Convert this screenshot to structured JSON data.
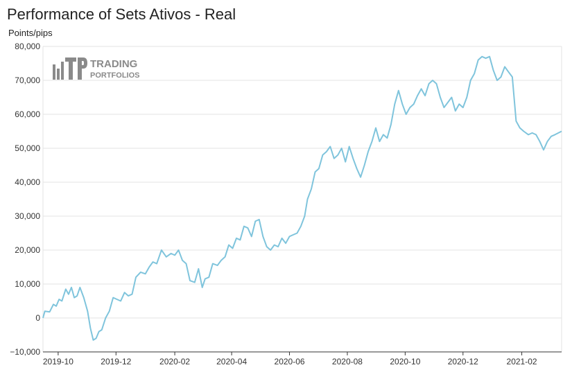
{
  "chart_data": {
    "type": "line",
    "title": "Performance of Sets Ativos - Real",
    "ylabel": "Points/pips",
    "xlabel": "",
    "ylim": [
      -10000,
      80000
    ],
    "xlim": [
      "2019-09-15",
      "2021-03-15"
    ],
    "grid": "horizontal",
    "legend": "none",
    "line_color": "#7fc4dc",
    "y_ticks": [
      {
        "value": -10000,
        "label": "−10,000"
      },
      {
        "value": 0,
        "label": "0"
      },
      {
        "value": 10000,
        "label": "10,000"
      },
      {
        "value": 20000,
        "label": "20,000"
      },
      {
        "value": 30000,
        "label": "30,000"
      },
      {
        "value": 40000,
        "label": "40,000"
      },
      {
        "value": 50000,
        "label": "50,000"
      },
      {
        "value": 60000,
        "label": "60,000"
      },
      {
        "value": 70000,
        "label": "70,000"
      },
      {
        "value": 80000,
        "label": "80,000"
      }
    ],
    "x_ticks": [
      {
        "date": "2019-10-01",
        "label": "2019-10"
      },
      {
        "date": "2019-12-01",
        "label": "2019-12"
      },
      {
        "date": "2020-02-01",
        "label": "2020-02"
      },
      {
        "date": "2020-04-01",
        "label": "2020-04"
      },
      {
        "date": "2020-06-01",
        "label": "2020-06"
      },
      {
        "date": "2020-08-01",
        "label": "2020-08"
      },
      {
        "date": "2020-10-01",
        "label": "2020-10"
      },
      {
        "date": "2020-12-01",
        "label": "2020-12"
      },
      {
        "date": "2021-02-01",
        "label": "2021-02"
      }
    ],
    "series": [
      {
        "points": [
          [
            "2019-09-15",
            0
          ],
          [
            "2019-09-17",
            2000
          ],
          [
            "2019-09-22",
            1800
          ],
          [
            "2019-09-26",
            4000
          ],
          [
            "2019-09-29",
            3500
          ],
          [
            "2019-10-02",
            5500
          ],
          [
            "2019-10-05",
            5000
          ],
          [
            "2019-10-09",
            8500
          ],
          [
            "2019-10-12",
            7000
          ],
          [
            "2019-10-15",
            9000
          ],
          [
            "2019-10-18",
            6000
          ],
          [
            "2019-10-21",
            6500
          ],
          [
            "2019-10-24",
            9000
          ],
          [
            "2019-10-28",
            6000
          ],
          [
            "2019-11-01",
            2000
          ],
          [
            "2019-11-04",
            -3000
          ],
          [
            "2019-11-07",
            -6500
          ],
          [
            "2019-11-10",
            -6000
          ],
          [
            "2019-11-13",
            -4000
          ],
          [
            "2019-11-16",
            -3500
          ],
          [
            "2019-11-20",
            0
          ],
          [
            "2019-11-24",
            2000
          ],
          [
            "2019-11-28",
            6000
          ],
          [
            "2019-12-02",
            5500
          ],
          [
            "2019-12-06",
            5000
          ],
          [
            "2019-12-10",
            7500
          ],
          [
            "2019-12-14",
            6500
          ],
          [
            "2019-12-18",
            7000
          ],
          [
            "2019-12-22",
            12000
          ],
          [
            "2019-12-27",
            13500
          ],
          [
            "2020-01-01",
            13000
          ],
          [
            "2020-01-05",
            15000
          ],
          [
            "2020-01-09",
            16500
          ],
          [
            "2020-01-13",
            16000
          ],
          [
            "2020-01-18",
            20000
          ],
          [
            "2020-01-23",
            18000
          ],
          [
            "2020-01-28",
            19000
          ],
          [
            "2020-02-01",
            18500
          ],
          [
            "2020-02-05",
            20000
          ],
          [
            "2020-02-09",
            17000
          ],
          [
            "2020-02-13",
            16000
          ],
          [
            "2020-02-17",
            11000
          ],
          [
            "2020-02-22",
            10500
          ],
          [
            "2020-02-26",
            14500
          ],
          [
            "2020-03-01",
            9000
          ],
          [
            "2020-03-04",
            11500
          ],
          [
            "2020-03-08",
            12000
          ],
          [
            "2020-03-12",
            16000
          ],
          [
            "2020-03-17",
            15500
          ],
          [
            "2020-03-21",
            17000
          ],
          [
            "2020-03-25",
            18000
          ],
          [
            "2020-03-29",
            21500
          ],
          [
            "2020-04-02",
            20500
          ],
          [
            "2020-04-06",
            23500
          ],
          [
            "2020-04-10",
            23000
          ],
          [
            "2020-04-14",
            27000
          ],
          [
            "2020-04-18",
            26500
          ],
          [
            "2020-04-22",
            24000
          ],
          [
            "2020-04-26",
            28500
          ],
          [
            "2020-04-30",
            29000
          ],
          [
            "2020-05-04",
            24000
          ],
          [
            "2020-05-08",
            21000
          ],
          [
            "2020-05-12",
            20000
          ],
          [
            "2020-05-16",
            21500
          ],
          [
            "2020-05-20",
            21000
          ],
          [
            "2020-05-24",
            23500
          ],
          [
            "2020-05-28",
            22000
          ],
          [
            "2020-06-01",
            24000
          ],
          [
            "2020-06-05",
            24500
          ],
          [
            "2020-06-09",
            25000
          ],
          [
            "2020-06-13",
            27000
          ],
          [
            "2020-06-17",
            30000
          ],
          [
            "2020-06-20",
            35000
          ],
          [
            "2020-06-24",
            38000
          ],
          [
            "2020-06-28",
            43000
          ],
          [
            "2020-07-02",
            44000
          ],
          [
            "2020-07-06",
            48000
          ],
          [
            "2020-07-10",
            49000
          ],
          [
            "2020-07-14",
            50500
          ],
          [
            "2020-07-18",
            47000
          ],
          [
            "2020-07-22",
            48000
          ],
          [
            "2020-07-26",
            50000
          ],
          [
            "2020-07-30",
            46000
          ],
          [
            "2020-08-03",
            50500
          ],
          [
            "2020-08-07",
            47000
          ],
          [
            "2020-08-11",
            44000
          ],
          [
            "2020-08-15",
            41500
          ],
          [
            "2020-08-19",
            45000
          ],
          [
            "2020-08-23",
            49000
          ],
          [
            "2020-08-27",
            52000
          ],
          [
            "2020-08-31",
            56000
          ],
          [
            "2020-09-04",
            52000
          ],
          [
            "2020-09-08",
            54000
          ],
          [
            "2020-09-12",
            53000
          ],
          [
            "2020-09-16",
            57000
          ],
          [
            "2020-09-20",
            63000
          ],
          [
            "2020-09-24",
            67000
          ],
          [
            "2020-09-28",
            63000
          ],
          [
            "2020-10-02",
            60000
          ],
          [
            "2020-10-06",
            62000
          ],
          [
            "2020-10-10",
            63000
          ],
          [
            "2020-10-14",
            65500
          ],
          [
            "2020-10-18",
            67500
          ],
          [
            "2020-10-22",
            65500
          ],
          [
            "2020-10-26",
            69000
          ],
          [
            "2020-10-30",
            70000
          ],
          [
            "2020-11-03",
            69000
          ],
          [
            "2020-11-07",
            65000
          ],
          [
            "2020-11-11",
            62000
          ],
          [
            "2020-11-15",
            63500
          ],
          [
            "2020-11-19",
            65000
          ],
          [
            "2020-11-23",
            61000
          ],
          [
            "2020-11-27",
            63000
          ],
          [
            "2020-12-01",
            62000
          ],
          [
            "2020-12-05",
            65000
          ],
          [
            "2020-12-09",
            70000
          ],
          [
            "2020-12-13",
            72000
          ],
          [
            "2020-12-17",
            76000
          ],
          [
            "2020-12-21",
            77000
          ],
          [
            "2020-12-25",
            76500
          ],
          [
            "2020-12-29",
            77000
          ],
          [
            "2021-01-02",
            73000
          ],
          [
            "2021-01-06",
            70000
          ],
          [
            "2021-01-10",
            71000
          ],
          [
            "2021-01-14",
            74000
          ],
          [
            "2021-01-18",
            72500
          ],
          [
            "2021-01-22",
            71000
          ],
          [
            "2021-01-26",
            58000
          ],
          [
            "2021-01-30",
            56000
          ],
          [
            "2021-02-03",
            55000
          ],
          [
            "2021-02-08",
            54000
          ],
          [
            "2021-02-12",
            54500
          ],
          [
            "2021-02-16",
            54000
          ],
          [
            "2021-02-20",
            52000
          ],
          [
            "2021-02-24",
            49500
          ],
          [
            "2021-02-28",
            52000
          ],
          [
            "2021-03-04",
            53500
          ],
          [
            "2021-03-08",
            54000
          ],
          [
            "2021-03-15",
            55000
          ]
        ]
      }
    ]
  },
  "logo": {
    "line1": "TRADING",
    "line2": "PORTFOLIOS",
    "icon": "bar-chart-tp-icon",
    "color": "#8a8a8a"
  }
}
